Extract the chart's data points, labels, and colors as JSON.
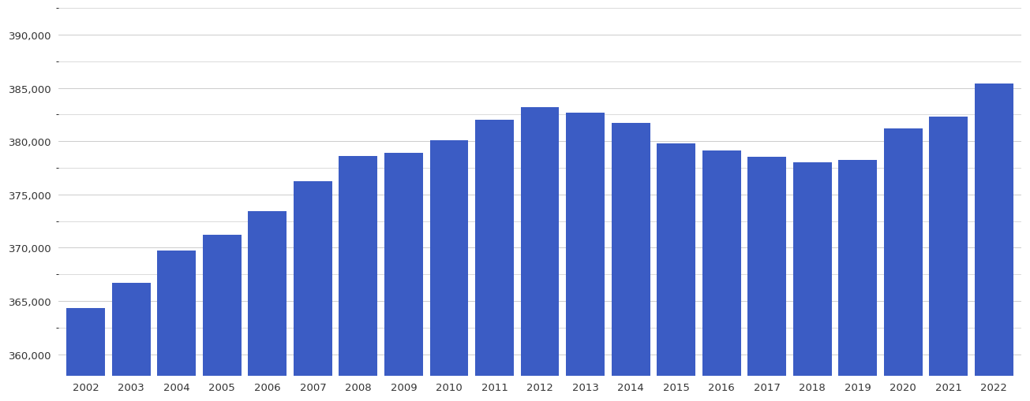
{
  "years": [
    2002,
    2003,
    2004,
    2005,
    2006,
    2007,
    2008,
    2009,
    2010,
    2011,
    2012,
    2013,
    2014,
    2015,
    2016,
    2017,
    2018,
    2019,
    2020,
    2021,
    2022
  ],
  "values": [
    364300,
    366700,
    369700,
    371200,
    373400,
    376200,
    378600,
    378900,
    380100,
    382000,
    383200,
    382700,
    381700,
    379800,
    379100,
    378500,
    378000,
    378200,
    381200,
    382300,
    385400
  ],
  "bar_color": "#3B5CC4",
  "ylim_min": 358000,
  "ylim_max": 392500,
  "ytick_values": [
    360000,
    365000,
    370000,
    375000,
    380000,
    385000,
    390000
  ],
  "background_color": "#ffffff",
  "grid_color": "#cccccc"
}
